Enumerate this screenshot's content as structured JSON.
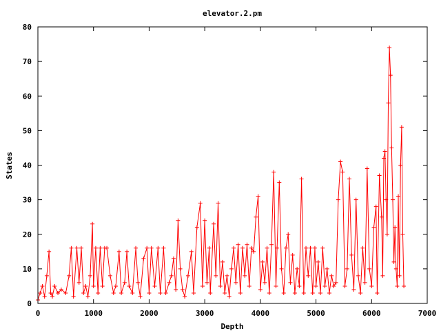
{
  "chart_data": {
    "type": "line",
    "title": "elevator.2.pm",
    "xlabel": "Depth",
    "ylabel": "States",
    "xlim": [
      0,
      7000
    ],
    "ylim": [
      0,
      80
    ],
    "xticks": [
      "0",
      "1000",
      "2000",
      "3000",
      "4000",
      "5000",
      "6000",
      "7000"
    ],
    "yticks": [
      "0",
      "10",
      "20",
      "30",
      "40",
      "50",
      "60",
      "70",
      "80"
    ],
    "grid": false,
    "legend": "none",
    "series": [
      {
        "color": "#ff0000",
        "marker": "plus",
        "x": [
          0,
          40,
          80,
          120,
          160,
          200,
          230,
          260,
          300,
          360,
          420,
          500,
          560,
          600,
          640,
          700,
          740,
          780,
          820,
          860,
          900,
          940,
          980,
          1000,
          1040,
          1080,
          1120,
          1160,
          1200,
          1240,
          1300,
          1360,
          1400,
          1460,
          1500,
          1560,
          1600,
          1640,
          1700,
          1760,
          1800,
          1840,
          1900,
          1960,
          2000,
          2040,
          2100,
          2160,
          2200,
          2260,
          2300,
          2360,
          2400,
          2440,
          2480,
          2520,
          2560,
          2600,
          2640,
          2700,
          2760,
          2800,
          2860,
          2920,
          2960,
          3000,
          3040,
          3080,
          3100,
          3160,
          3200,
          3240,
          3280,
          3320,
          3360,
          3400,
          3440,
          3480,
          3520,
          3560,
          3600,
          3640,
          3680,
          3720,
          3760,
          3800,
          3840,
          3880,
          3920,
          3960,
          4000,
          4040,
          4080,
          4120,
          4160,
          4200,
          4240,
          4280,
          4300,
          4340,
          4380,
          4420,
          4460,
          4500,
          4540,
          4580,
          4620,
          4660,
          4700,
          4740,
          4780,
          4820,
          4860,
          4900,
          4940,
          4980,
          5000,
          5040,
          5080,
          5120,
          5160,
          5200,
          5240,
          5280,
          5320,
          5360,
          5400,
          5440,
          5480,
          5520,
          5560,
          5600,
          5640,
          5680,
          5720,
          5760,
          5800,
          5840,
          5880,
          5920,
          5960,
          6000,
          6040,
          6080,
          6100,
          6140,
          6180,
          6200,
          6220,
          6240,
          6260,
          6280,
          6300,
          6320,
          6340,
          6360,
          6380,
          6400,
          6420,
          6440,
          6460,
          6480,
          6500,
          6520,
          6540,
          6560,
          6580
        ],
        "y": [
          1,
          3,
          5,
          2,
          8,
          15,
          3,
          2,
          5,
          3,
          4,
          3,
          8,
          16,
          2,
          16,
          6,
          16,
          3,
          5,
          2,
          8,
          23,
          5,
          16,
          3,
          16,
          5,
          16,
          16,
          8,
          3,
          5,
          15,
          3,
          6,
          15,
          5,
          3,
          16,
          6,
          2,
          13,
          16,
          3,
          16,
          5,
          16,
          3,
          16,
          3,
          6,
          8,
          13,
          4,
          24,
          10,
          4,
          2,
          8,
          15,
          3,
          22,
          29,
          5,
          24,
          6,
          16,
          3,
          23,
          8,
          29,
          5,
          12,
          3,
          8,
          2,
          10,
          16,
          6,
          17,
          3,
          16,
          8,
          17,
          5,
          16,
          15,
          25,
          31,
          4,
          12,
          6,
          16,
          3,
          17,
          38,
          5,
          16,
          35,
          10,
          3,
          16,
          20,
          6,
          14,
          3,
          10,
          5,
          36,
          3,
          16,
          8,
          16,
          3,
          16,
          5,
          12,
          3,
          16,
          5,
          10,
          3,
          8,
          5,
          6,
          30,
          41,
          38,
          5,
          10,
          36,
          14,
          4,
          30,
          8,
          3,
          16,
          6,
          39,
          10,
          5,
          22,
          28,
          3,
          37,
          25,
          8,
          42,
          44,
          30,
          20,
          58,
          74,
          66,
          45,
          30,
          12,
          22,
          10,
          5,
          31,
          8,
          40,
          51,
          20,
          5
        ]
      }
    ]
  }
}
